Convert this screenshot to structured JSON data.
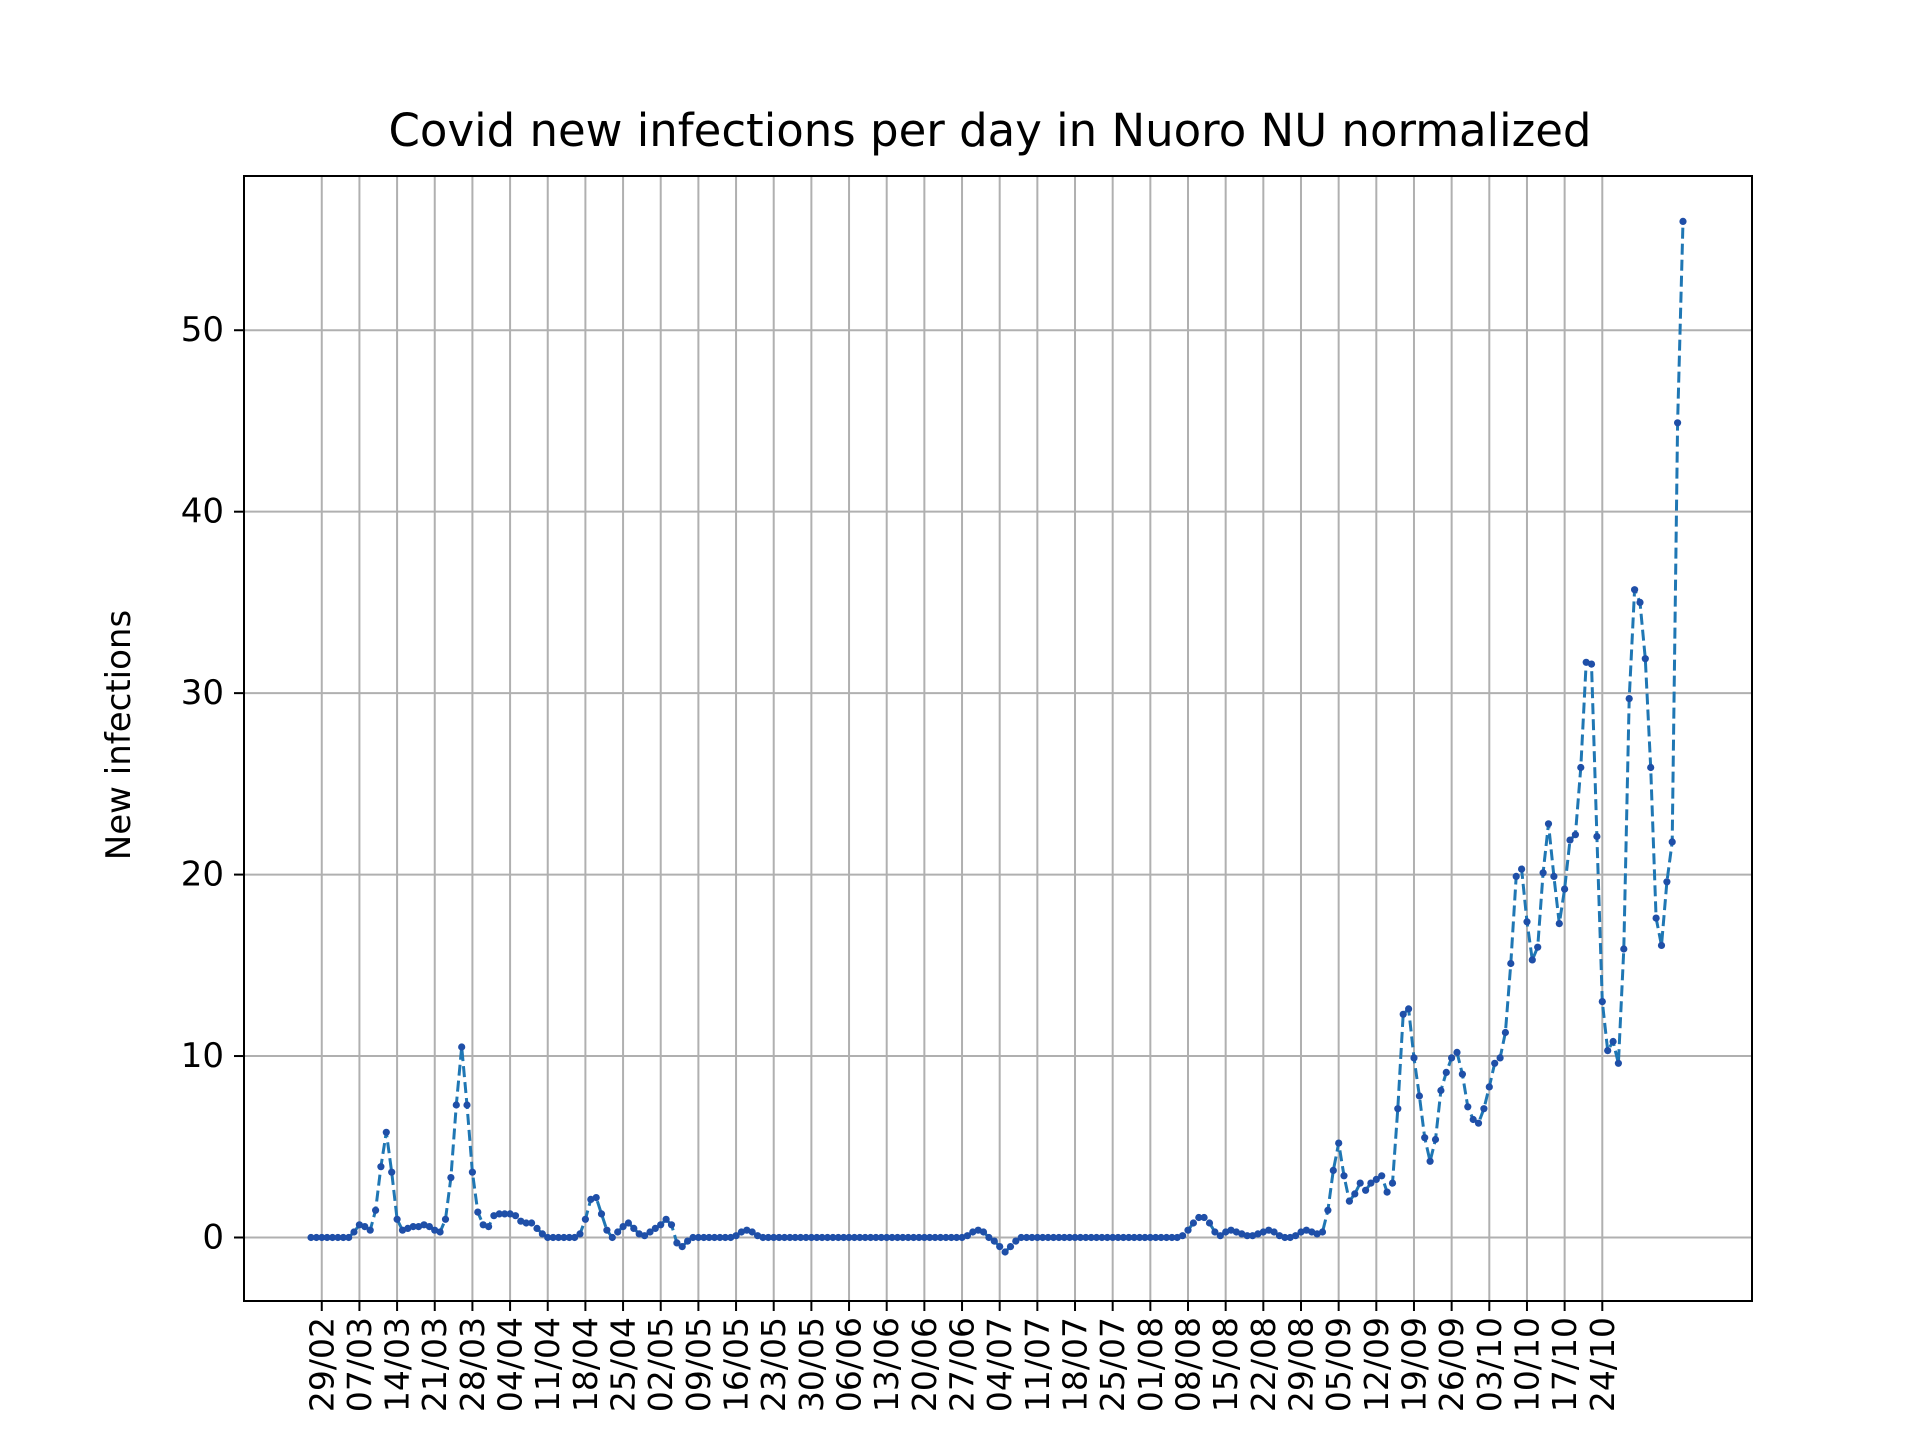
{
  "chart_data": {
    "type": "line",
    "title": "Covid new infections per day in Nuoro NU normalized",
    "xlabel": "",
    "ylabel": "New infections",
    "ylim": [
      -3.5,
      58.5
    ],
    "grid": true,
    "legend": "none",
    "line_style": "dashed with dot markers",
    "colors": {
      "line": "#1f77b4",
      "marker": "#1f4fa8",
      "grid": "#b0b0b0",
      "axes": "#000000"
    },
    "x_ticks": [
      "29/02",
      "07/03",
      "14/03",
      "21/03",
      "28/03",
      "04/04",
      "11/04",
      "18/04",
      "25/04",
      "02/05",
      "09/05",
      "16/05",
      "23/05",
      "30/05",
      "06/06",
      "13/06",
      "20/06",
      "27/06",
      "04/07",
      "11/07",
      "18/07",
      "25/07",
      "01/08",
      "08/08",
      "15/08",
      "22/08",
      "29/08",
      "05/09",
      "12/09",
      "19/09",
      "26/09",
      "03/10",
      "10/10",
      "17/10",
      "24/10"
    ],
    "y_ticks": [
      "0",
      "10",
      "20",
      "30",
      "40",
      "50"
    ],
    "y_tick_values": [
      0,
      10,
      20,
      30,
      40,
      50
    ],
    "series": [
      {
        "start_date": "27/02",
        "values": [
          0,
          0,
          0,
          0,
          0,
          0,
          0,
          0,
          0.3,
          0.7,
          0.6,
          0.4,
          1.5,
          3.9,
          5.8,
          3.6,
          1.0,
          0.4,
          0.5,
          0.6,
          0.6,
          0.7,
          0.6,
          0.4,
          0.3,
          1.0,
          3.3,
          7.3,
          10.5,
          7.3,
          3.6,
          1.4,
          0.7,
          0.6,
          1.2,
          1.3,
          1.3,
          1.3,
          1.2,
          0.9,
          0.8,
          0.8,
          0.5,
          0.2,
          0,
          0,
          0,
          0,
          0,
          0,
          0.2,
          1.0,
          2.1,
          2.2,
          1.3,
          0.4,
          0,
          0.3,
          0.6,
          0.8,
          0.5,
          0.2,
          0.1,
          0.3,
          0.5,
          0.7,
          1.0,
          0.7,
          -0.3,
          -0.5,
          -0.2,
          0,
          0,
          0,
          0,
          0,
          0,
          0,
          0,
          0.1,
          0.3,
          0.4,
          0.3,
          0.1,
          0,
          0,
          0,
          0,
          0,
          0,
          0,
          0,
          0,
          0,
          0,
          0,
          0,
          0,
          0,
          0,
          0,
          0,
          0,
          0,
          0,
          0,
          0,
          0,
          0,
          0,
          0,
          0,
          0,
          0,
          0,
          0,
          0,
          0,
          0,
          0,
          0,
          0,
          0.1,
          0.3,
          0.4,
          0.3,
          0,
          -0.2,
          -0.5,
          -0.8,
          -0.5,
          -0.2,
          0,
          0,
          0,
          0,
          0,
          0,
          0,
          0,
          0,
          0,
          0,
          0,
          0,
          0,
          0,
          0,
          0,
          0,
          0,
          0,
          0,
          0,
          0,
          0,
          0,
          0,
          0,
          0,
          0,
          0,
          0.1,
          0.4,
          0.8,
          1.1,
          1.1,
          0.8,
          0.3,
          0.1,
          0.3,
          0.4,
          0.3,
          0.2,
          0.1,
          0.1,
          0.2,
          0.3,
          0.4,
          0.3,
          0.1,
          0,
          0,
          0.1,
          0.3,
          0.4,
          0.3,
          0.2,
          0.3,
          1.5,
          3.7,
          5.2,
          3.4,
          2.0,
          2.4,
          3.0,
          2.6,
          3.0,
          3.2,
          3.4,
          2.5,
          3.0,
          7.1,
          12.3,
          12.6,
          9.9,
          7.8,
          5.5,
          4.2,
          5.4,
          8.1,
          9.1,
          9.9,
          10.2,
          9.0,
          7.2,
          6.5,
          6.3,
          7.1,
          8.3,
          9.6,
          9.9,
          11.3,
          15.1,
          19.9,
          20.3,
          17.4,
          15.3,
          16.0,
          20.1,
          22.8,
          19.9,
          17.3,
          19.2,
          21.9,
          22.2,
          25.9,
          31.7,
          31.6,
          22.1,
          13.0,
          10.3,
          10.8,
          9.6,
          15.9,
          29.7,
          35.7,
          35.0,
          31.9,
          25.9,
          17.6,
          16.1,
          19.6,
          21.8,
          44.9,
          56.0
        ]
      }
    ]
  }
}
